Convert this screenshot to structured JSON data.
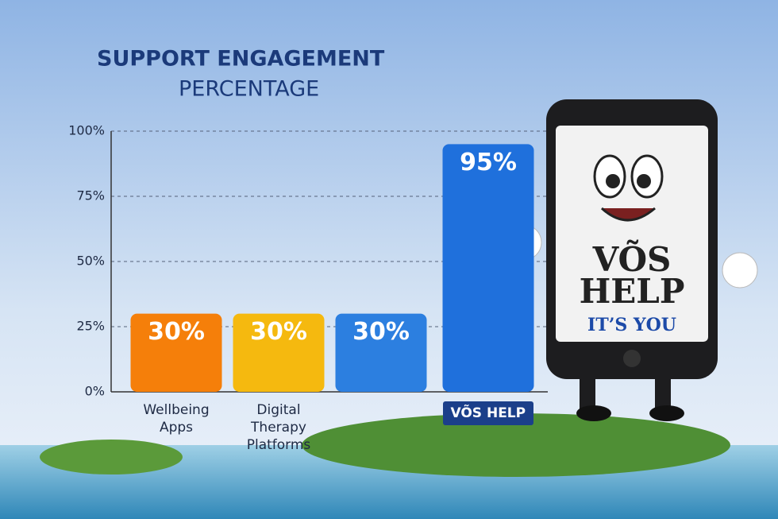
{
  "chart_data": {
    "type": "bar",
    "title": "SUPPORT ENGAGEMENT",
    "subtitle": "PERCENTAGE",
    "categories": [
      "Wellbeing Apps",
      "Digital Therapy Platforms",
      null,
      "VÕS HELP"
    ],
    "values": [
      30,
      30,
      30,
      95
    ],
    "value_labels": [
      "30%",
      "30%",
      "30%",
      "95%"
    ],
    "colors": [
      "#f57f0a",
      "#f5b90f",
      "#2c7fe0",
      "#1f70dc"
    ],
    "ylim": [
      0,
      100
    ],
    "yticks": [
      {
        "value": 0,
        "label": "0%"
      },
      {
        "value": 25,
        "label": "25%"
      },
      {
        "value": 50,
        "label": "50%"
      },
      {
        "value": 75,
        "label": "75%"
      },
      {
        "value": 100,
        "label": "100%"
      }
    ],
    "grid": true,
    "annotations": [
      "VÕS",
      "HELP",
      "IT’S YOU"
    ]
  }
}
